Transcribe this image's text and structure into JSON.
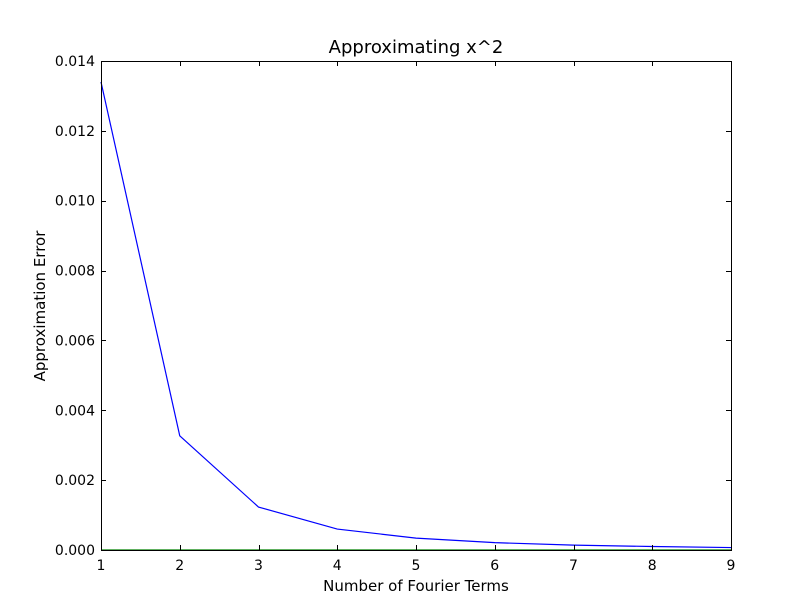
{
  "chart_data": {
    "type": "line",
    "title": "Approximating x^2",
    "xlabel": "Number of Fourier Terms",
    "ylabel": "Approximation Error",
    "xlim": [
      1,
      9
    ],
    "ylim": [
      0,
      0.014
    ],
    "x_ticks": [
      "1",
      "2",
      "3",
      "4",
      "5",
      "6",
      "7",
      "8",
      "9"
    ],
    "y_ticks": [
      "0.000",
      "0.002",
      "0.004",
      "0.006",
      "0.008",
      "0.010",
      "0.012",
      "0.014"
    ],
    "grid": false,
    "x": [
      1,
      2,
      3,
      4,
      5,
      6,
      7,
      8,
      9
    ],
    "series": [
      {
        "color": "#0000ff",
        "values": [
          0.0134,
          0.00327,
          0.00123,
          0.0006,
          0.00034,
          0.00021,
          0.00014,
          0.0001,
          7e-05
        ]
      },
      {
        "color": "#008000",
        "values": [
          0,
          0,
          0,
          0,
          0,
          0,
          0,
          0,
          0
        ]
      }
    ]
  }
}
